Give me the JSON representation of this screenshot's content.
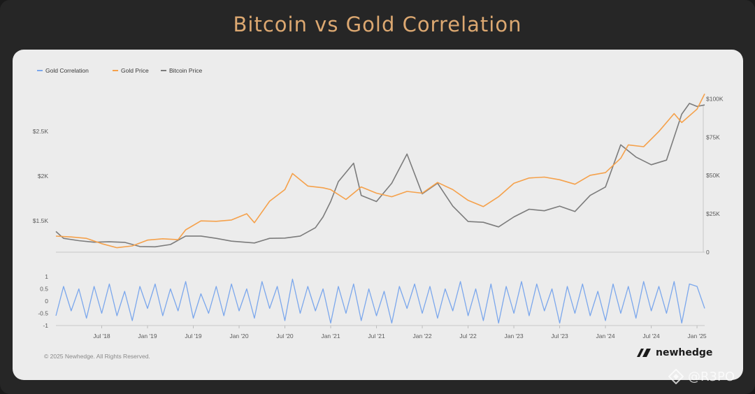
{
  "title": "Bitcoin vs Gold Correlation",
  "copyright": "© 2025 Newhedge. All Rights Reserved.",
  "brand": {
    "name": "newhedge",
    "icon": "newhedge-logo-icon"
  },
  "watermark": {
    "text": "@R3PO",
    "icon": "diamond-logo-icon"
  },
  "colors": {
    "gold": "#f5a14b",
    "bitcoin": "#7c7c7c",
    "correlation": "#7ba7ec",
    "title": "#dca871"
  },
  "chart_data": [
    {
      "type": "line",
      "legend": {
        "placement": "top-left",
        "entries": [
          "Gold Correlation",
          "Gold Price",
          "Bitcoin Price"
        ]
      },
      "grid": false,
      "x_ticks": [
        "Jul '18",
        "Jan '19",
        "Jul '19",
        "Jan '20",
        "Jul '20",
        "Jan '21",
        "Jul '21",
        "Jan '22",
        "Jul '22",
        "Jan '23",
        "Jul '23",
        "Jan '24",
        "Jul '24",
        "Jan '25"
      ],
      "y_left": {
        "ticks": [
          "$1.5K",
          "$2K",
          "$2.5K"
        ],
        "ylim": [
          1150,
          2900
        ]
      },
      "y_right": {
        "ticks": [
          "0",
          "$25K",
          "$50K",
          "$75K",
          "$100K"
        ],
        "ylim": [
          0,
          102000
        ]
      },
      "series": [
        {
          "name": "Gold Price",
          "axis": "left",
          "x": [
            "2018-01",
            "2018-03",
            "2018-05",
            "2018-07",
            "2018-09",
            "2018-11",
            "2019-01",
            "2019-03",
            "2019-05",
            "2019-06",
            "2019-08",
            "2019-10",
            "2019-12",
            "2020-02",
            "2020-03",
            "2020-05",
            "2020-07",
            "2020-08",
            "2020-10",
            "2020-12",
            "2021-01",
            "2021-03",
            "2021-05",
            "2021-07",
            "2021-09",
            "2021-11",
            "2022-01",
            "2022-03",
            "2022-05",
            "2022-07",
            "2022-09",
            "2022-11",
            "2023-01",
            "2023-03",
            "2023-05",
            "2023-07",
            "2023-09",
            "2023-11",
            "2024-01",
            "2024-03",
            "2024-04",
            "2024-06",
            "2024-08",
            "2024-10",
            "2024-11",
            "2025-01",
            "2025-02"
          ],
          "values": [
            1330,
            1320,
            1305,
            1245,
            1200,
            1220,
            1285,
            1300,
            1290,
            1400,
            1500,
            1495,
            1510,
            1580,
            1480,
            1720,
            1850,
            2030,
            1890,
            1870,
            1850,
            1740,
            1880,
            1810,
            1770,
            1830,
            1810,
            1930,
            1850,
            1730,
            1660,
            1770,
            1920,
            1980,
            1990,
            1960,
            1910,
            2010,
            2040,
            2200,
            2350,
            2330,
            2500,
            2700,
            2600,
            2750,
            2920
          ]
        },
        {
          "name": "Bitcoin Price",
          "axis": "right",
          "x": [
            "2018-01",
            "2018-02",
            "2018-04",
            "2018-06",
            "2018-08",
            "2018-10",
            "2018-12",
            "2019-02",
            "2019-04",
            "2019-06",
            "2019-08",
            "2019-10",
            "2019-12",
            "2020-03",
            "2020-05",
            "2020-07",
            "2020-09",
            "2020-11",
            "2020-12",
            "2021-01",
            "2021-02",
            "2021-04",
            "2021-05",
            "2021-07",
            "2021-09",
            "2021-11",
            "2022-01",
            "2022-03",
            "2022-05",
            "2022-07",
            "2022-09",
            "2022-11",
            "2023-01",
            "2023-03",
            "2023-05",
            "2023-07",
            "2023-09",
            "2023-11",
            "2024-01",
            "2024-03",
            "2024-05",
            "2024-07",
            "2024-09",
            "2024-11",
            "2024-12",
            "2025-01",
            "2025-02"
          ],
          "values": [
            13500,
            9000,
            7500,
            6500,
            6800,
            6400,
            3700,
            3500,
            5000,
            10500,
            10500,
            9000,
            7200,
            6000,
            9000,
            9200,
            10500,
            16000,
            23000,
            33000,
            46000,
            58000,
            37000,
            33000,
            45000,
            64000,
            38000,
            45000,
            30000,
            20000,
            19500,
            16500,
            23000,
            28000,
            27000,
            30000,
            26500,
            37000,
            42500,
            70000,
            62000,
            57000,
            60000,
            90000,
            97000,
            95000,
            96000
          ]
        },
        {
          "name": "Gold Correlation",
          "axis": "bottom",
          "ylim": [
            -1,
            1
          ],
          "y_ticks": [
            "1",
            "0.5",
            "0",
            "-0.5",
            "-1"
          ],
          "x": [
            "2018-01",
            "2018-02",
            "2018-03",
            "2018-04",
            "2018-05",
            "2018-06",
            "2018-07",
            "2018-08",
            "2018-09",
            "2018-10",
            "2018-11",
            "2018-12",
            "2019-01",
            "2019-02",
            "2019-03",
            "2019-04",
            "2019-05",
            "2019-06",
            "2019-07",
            "2019-08",
            "2019-09",
            "2019-10",
            "2019-11",
            "2019-12",
            "2020-01",
            "2020-02",
            "2020-03",
            "2020-04",
            "2020-05",
            "2020-06",
            "2020-07",
            "2020-08",
            "2020-09",
            "2020-10",
            "2020-11",
            "2020-12",
            "2021-01",
            "2021-02",
            "2021-03",
            "2021-04",
            "2021-05",
            "2021-06",
            "2021-07",
            "2021-08",
            "2021-09",
            "2021-10",
            "2021-11",
            "2021-12",
            "2022-01",
            "2022-02",
            "2022-03",
            "2022-04",
            "2022-05",
            "2022-06",
            "2022-07",
            "2022-08",
            "2022-09",
            "2022-10",
            "2022-11",
            "2022-12",
            "2023-01",
            "2023-02",
            "2023-03",
            "2023-04",
            "2023-05",
            "2023-06",
            "2023-07",
            "2023-08",
            "2023-09",
            "2023-10",
            "2023-11",
            "2023-12",
            "2024-01",
            "2024-02",
            "2024-03",
            "2024-04",
            "2024-05",
            "2024-06",
            "2024-07",
            "2024-08",
            "2024-09",
            "2024-10",
            "2024-11",
            "2024-12",
            "2025-01",
            "2025-02"
          ],
          "values": [
            -0.6,
            0.6,
            -0.4,
            0.5,
            -0.7,
            0.6,
            -0.5,
            0.7,
            -0.6,
            0.4,
            -0.8,
            0.6,
            -0.3,
            0.7,
            -0.6,
            0.5,
            -0.4,
            0.8,
            -0.7,
            0.3,
            -0.5,
            0.6,
            -0.6,
            0.7,
            -0.4,
            0.5,
            -0.7,
            0.8,
            -0.3,
            0.6,
            -0.8,
            0.9,
            -0.5,
            0.6,
            -0.4,
            0.5,
            -0.9,
            0.6,
            -0.5,
            0.7,
            -0.8,
            0.5,
            -0.6,
            0.4,
            -0.9,
            0.6,
            -0.3,
            0.7,
            -0.5,
            0.6,
            -0.7,
            0.5,
            -0.4,
            0.8,
            -0.6,
            0.5,
            -0.8,
            0.7,
            -0.9,
            0.6,
            -0.5,
            0.8,
            -0.6,
            0.7,
            -0.4,
            0.5,
            -0.9,
            0.6,
            -0.5,
            0.7,
            -0.6,
            0.4,
            -0.8,
            0.7,
            -0.5,
            0.6,
            -0.7,
            0.8,
            -0.4,
            0.6,
            -0.5,
            0.8,
            -0.9,
            0.7,
            0.6,
            -0.3
          ]
        }
      ]
    }
  ]
}
